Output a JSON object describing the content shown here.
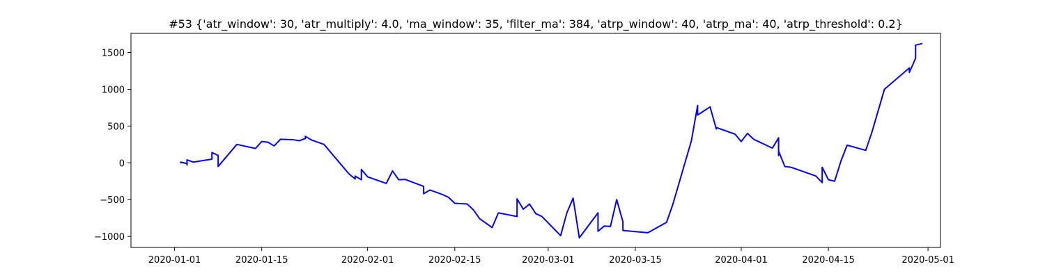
{
  "chart_data": {
    "type": "line",
    "title": "#53 {'atr_window': 30, 'atr_multiply': 4.0, 'ma_window': 35, 'filter_ma': 384, 'atrp_window': 40, 'atrp_ma': 40, 'atrp_threshold': 0.2}",
    "xlabel": "",
    "ylabel": "",
    "grid": false,
    "line_color": "#0000ff",
    "x_ticks": [
      "2020-01-01",
      "2020-01-15",
      "2020-02-01",
      "2020-02-15",
      "2020-03-01",
      "2020-03-15",
      "2020-04-01",
      "2020-04-15",
      "2020-05-01"
    ],
    "y_ticks": [
      -1000,
      -500,
      0,
      500,
      1000,
      1500
    ],
    "xlim": [
      "2019-12-25",
      "2020-05-03"
    ],
    "ylim": [
      -1150,
      1760
    ],
    "series": [
      {
        "x": [
          "2020-01-02",
          "2020-01-02",
          "2020-01-03",
          "2020-01-03",
          "2020-01-03",
          "2020-01-03",
          "2020-01-04",
          "2020-01-07",
          "2020-01-07",
          "2020-01-08",
          "2020-01-08",
          "2020-01-11",
          "2020-01-14",
          "2020-01-15",
          "2020-01-16",
          "2020-01-17",
          "2020-01-18",
          "2020-01-20",
          "2020-01-21",
          "2020-01-22",
          "2020-01-22",
          "2020-01-23",
          "2020-01-25",
          "2020-01-26",
          "2020-01-28",
          "2020-01-29",
          "2020-01-30",
          "2020-01-30",
          "2020-01-31",
          "2020-01-31",
          "2020-01-31",
          "2020-02-01",
          "2020-02-04",
          "2020-02-05",
          "2020-02-06",
          "2020-02-07",
          "2020-02-10",
          "2020-02-10",
          "2020-02-11",
          "2020-02-12",
          "2020-02-13",
          "2020-02-14",
          "2020-02-15",
          "2020-02-17",
          "2020-02-18",
          "2020-02-19",
          "2020-02-21",
          "2020-02-22",
          "2020-02-25",
          "2020-02-25",
          "2020-02-26",
          "2020-02-27",
          "2020-02-28",
          "2020-02-29",
          "2020-03-03",
          "2020-03-04",
          "2020-03-05",
          "2020-03-06",
          "2020-03-09",
          "2020-03-09",
          "2020-03-10",
          "2020-03-11",
          "2020-03-12",
          "2020-03-13",
          "2020-03-13",
          "2020-03-17",
          "2020-03-20",
          "2020-03-21",
          "2020-03-24",
          "2020-03-25",
          "2020-03-25",
          "2020-03-27",
          "2020-03-28",
          "2020-03-28",
          "2020-03-31",
          "2020-04-01",
          "2020-04-02",
          "2020-04-03",
          "2020-04-06",
          "2020-04-07",
          "2020-04-07",
          "2020-04-07",
          "2020-04-08",
          "2020-04-09",
          "2020-04-13",
          "2020-04-14",
          "2020-04-14",
          "2020-04-15",
          "2020-04-16",
          "2020-04-17",
          "2020-04-18",
          "2020-04-21",
          "2020-04-22",
          "2020-04-24",
          "2020-04-28",
          "2020-04-28",
          "2020-04-29",
          "2020-04-29",
          "2020-04-29",
          "2020-04-30"
        ],
        "values": [
          0,
          10,
          -10,
          20,
          -30,
          40,
          10,
          50,
          140,
          100,
          -50,
          250,
          195,
          290,
          280,
          230,
          320,
          315,
          300,
          330,
          360,
          310,
          250,
          150,
          -50,
          -150,
          -220,
          -180,
          -230,
          -120,
          -90,
          -190,
          -280,
          -110,
          -230,
          -225,
          -320,
          -420,
          -370,
          -400,
          -430,
          -470,
          -550,
          -560,
          -640,
          -760,
          -880,
          -680,
          -730,
          -490,
          -630,
          -560,
          -690,
          -730,
          -990,
          -680,
          -480,
          -1020,
          -680,
          -930,
          -860,
          -865,
          -500,
          -800,
          -920,
          -950,
          -810,
          -570,
          300,
          780,
          650,
          760,
          460,
          480,
          390,
          290,
          400,
          320,
          200,
          340,
          100,
          160,
          -50,
          -60,
          -180,
          -270,
          -60,
          -230,
          -250,
          20,
          240,
          170,
          420,
          1000,
          1290,
          1230,
          1420,
          1450,
          1600,
          1620
        ]
      }
    ]
  }
}
